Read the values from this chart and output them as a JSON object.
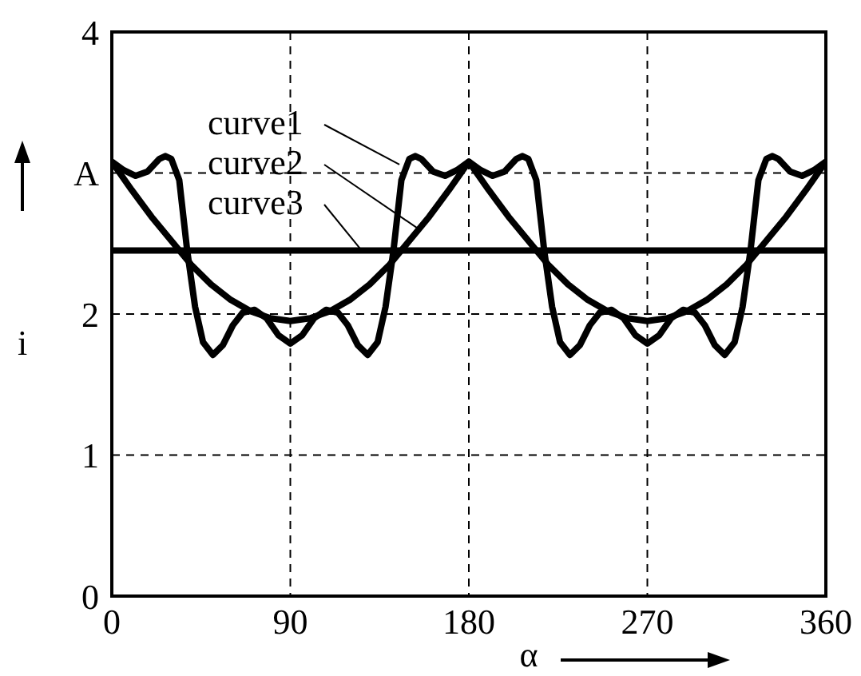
{
  "chart_data": {
    "type": "line",
    "xlabel": "α",
    "ylabel": "i",
    "xlim": [
      0,
      360
    ],
    "xticks": [
      0,
      90,
      180,
      270,
      360
    ],
    "ylim": [
      0,
      4
    ],
    "yticks": [
      0,
      1,
      2,
      {
        "value": 3,
        "label": "A"
      },
      4
    ],
    "grid": true,
    "line_style": "solid",
    "annotations": [
      {
        "text": "curve1",
        "x": 145,
        "y": 3.06
      },
      {
        "text": "curve2",
        "x": 155,
        "y": 2.6
      },
      {
        "text": "curve3",
        "x": 126,
        "y": 2.45
      }
    ],
    "series": [
      {
        "color": "#000000",
        "x": [
          0,
          6,
          12,
          18,
          24,
          27,
          30,
          34,
          38,
          42,
          46,
          51,
          56,
          61,
          66,
          72,
          78,
          84,
          90,
          96,
          102,
          108,
          114,
          119,
          124,
          129,
          134,
          138,
          142,
          146,
          150,
          153,
          156,
          162,
          168,
          174,
          180,
          186,
          192,
          198,
          204,
          207,
          210,
          214,
          218,
          222,
          226,
          231,
          236,
          241,
          246,
          252,
          258,
          264,
          270,
          276,
          282,
          288,
          294,
          299,
          304,
          309,
          314,
          318,
          322,
          326,
          330,
          333,
          336,
          342,
          348,
          354,
          360
        ],
        "values": [
          3.08,
          3.02,
          2.98,
          3.01,
          3.1,
          3.12,
          3.1,
          2.95,
          2.45,
          2.05,
          1.8,
          1.71,
          1.78,
          1.92,
          2.01,
          2.03,
          1.97,
          1.85,
          1.79,
          1.85,
          1.97,
          2.03,
          2.01,
          1.92,
          1.78,
          1.71,
          1.8,
          2.05,
          2.45,
          2.95,
          3.1,
          3.12,
          3.1,
          3.01,
          2.98,
          3.02,
          3.08,
          3.02,
          2.98,
          3.01,
          3.1,
          3.12,
          3.1,
          2.95,
          2.45,
          2.05,
          1.8,
          1.71,
          1.78,
          1.92,
          2.01,
          2.03,
          1.97,
          1.85,
          1.79,
          1.85,
          1.97,
          2.03,
          2.01,
          1.92,
          1.78,
          1.71,
          1.8,
          2.05,
          2.45,
          2.95,
          3.1,
          3.12,
          3.1,
          3.01,
          2.98,
          3.02,
          3.08
        ]
      },
      {
        "color": "#000000",
        "x": [
          0,
          10,
          20,
          30,
          40,
          50,
          60,
          70,
          80,
          90,
          100,
          110,
          120,
          130,
          140,
          150,
          160,
          170,
          180,
          190,
          200,
          210,
          220,
          230,
          240,
          250,
          260,
          270,
          280,
          290,
          300,
          310,
          320,
          330,
          340,
          350,
          360
        ],
        "values": [
          3.08,
          2.88,
          2.69,
          2.52,
          2.35,
          2.21,
          2.1,
          2.02,
          1.97,
          1.95,
          1.97,
          2.02,
          2.1,
          2.21,
          2.35,
          2.52,
          2.69,
          2.88,
          3.08,
          2.88,
          2.69,
          2.52,
          2.35,
          2.21,
          2.1,
          2.02,
          1.97,
          1.95,
          1.97,
          2.02,
          2.1,
          2.21,
          2.35,
          2.52,
          2.69,
          2.88,
          3.08
        ]
      },
      {
        "color": "#000000",
        "x": [
          0,
          360
        ],
        "values": [
          2.45,
          2.45
        ]
      }
    ]
  }
}
